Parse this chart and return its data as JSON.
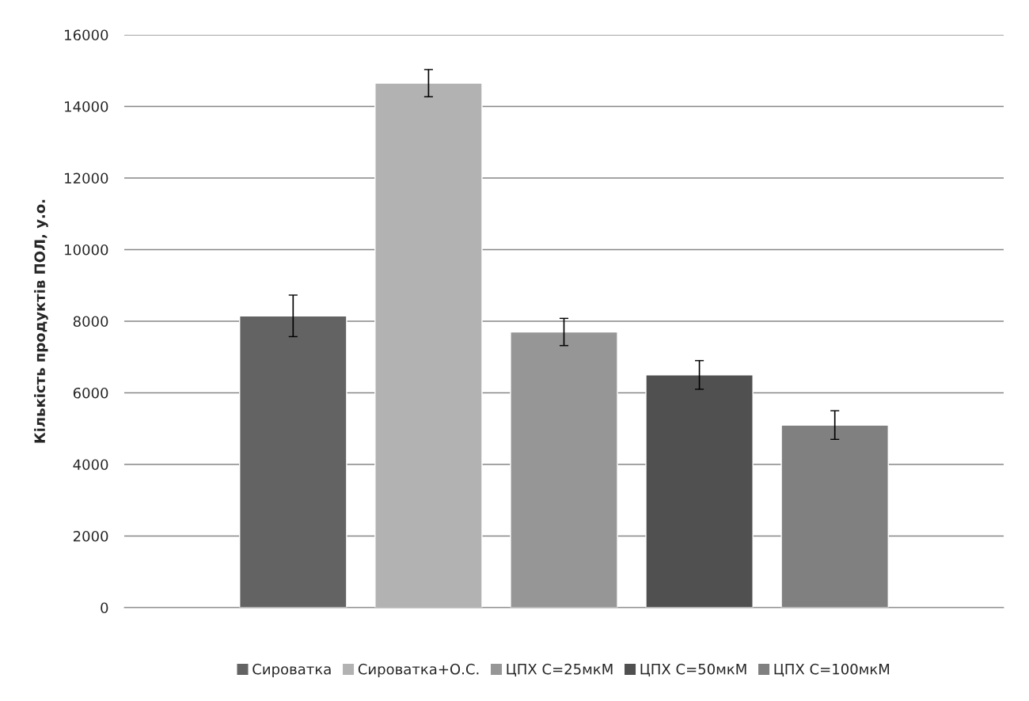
{
  "chart_data": {
    "type": "bar",
    "ylabel": "Кількість продуктів ПОЛ, у.о.",
    "categories": [
      null
    ],
    "series": [
      {
        "name": "Сироватка",
        "color": "#636363",
        "values": [
          8150
        ],
        "errors": [
          580
        ]
      },
      {
        "name": "Сироватка+О.С.",
        "color": "#b2b2b2",
        "values": [
          14650
        ],
        "errors": [
          380
        ]
      },
      {
        "name": "ЦПХ С=25мкМ",
        "color": "#969696",
        "values": [
          7700
        ],
        "errors": [
          380
        ]
      },
      {
        "name": "ЦПХ С=50мкМ",
        "color": "#505050",
        "values": [
          6500
        ],
        "errors": [
          400
        ]
      },
      {
        "name": "ЦПХ С=100мкМ",
        "color": "#808080",
        "values": [
          5100
        ],
        "errors": [
          400
        ]
      }
    ],
    "ylim": [
      0,
      16000
    ],
    "yticks": [
      0,
      2000,
      4000,
      6000,
      8000,
      10000,
      12000,
      14000,
      16000
    ],
    "grid": "y",
    "legend": "bottom"
  }
}
